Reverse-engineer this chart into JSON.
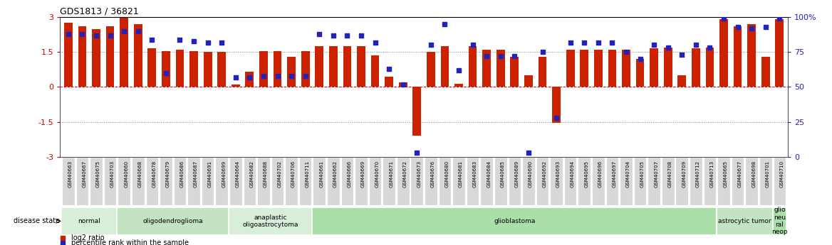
{
  "title": "GDS1813 / 36821",
  "samples": [
    "GSM40663",
    "GSM40667",
    "GSM40675",
    "GSM40703",
    "GSM40660",
    "GSM40668",
    "GSM40678",
    "GSM40679",
    "GSM40686",
    "GSM40687",
    "GSM40691",
    "GSM40699",
    "GSM40664",
    "GSM40682",
    "GSM40688",
    "GSM40702",
    "GSM40706",
    "GSM40711",
    "GSM40661",
    "GSM40662",
    "GSM40666",
    "GSM40669",
    "GSM40670",
    "GSM40671",
    "GSM40672",
    "GSM40673",
    "GSM40676",
    "GSM40680",
    "GSM40681",
    "GSM40683",
    "GSM40684",
    "GSM40685",
    "GSM40689",
    "GSM40690",
    "GSM40692",
    "GSM40693",
    "GSM40694",
    "GSM40695",
    "GSM40696",
    "GSM40697",
    "GSM40704",
    "GSM40705",
    "GSM40707",
    "GSM40708",
    "GSM40709",
    "GSM40712",
    "GSM40713",
    "GSM40665",
    "GSM40677",
    "GSM40698",
    "GSM40701",
    "GSM40710"
  ],
  "log2_ratio": [
    2.75,
    2.6,
    2.5,
    2.6,
    3.0,
    2.7,
    1.65,
    1.55,
    1.6,
    1.55,
    1.5,
    1.5,
    0.1,
    0.65,
    1.55,
    1.55,
    1.3,
    1.55,
    1.75,
    1.75,
    1.75,
    1.75,
    1.35,
    0.45,
    0.2,
    -2.1,
    1.5,
    1.75,
    0.15,
    1.75,
    1.6,
    1.6,
    1.3,
    0.5,
    1.3,
    -1.55,
    1.6,
    1.6,
    1.6,
    1.6,
    1.6,
    1.2,
    1.65,
    1.7,
    0.5,
    1.65,
    1.7,
    2.9,
    2.6,
    2.7,
    1.3,
    2.9
  ],
  "percentile": [
    88,
    88,
    87,
    87,
    90,
    90,
    84,
    60,
    84,
    83,
    82,
    82,
    57,
    57,
    58,
    58,
    58,
    58,
    88,
    87,
    87,
    87,
    82,
    63,
    52,
    3,
    80,
    95,
    62,
    80,
    72,
    72,
    72,
    3,
    75,
    28,
    82,
    82,
    82,
    82,
    75,
    70,
    80,
    78,
    73,
    80,
    78,
    99,
    93,
    92,
    93,
    99
  ],
  "disease_groups": [
    {
      "label": "normal",
      "start": 0,
      "end": 4,
      "color": "#d8eed8"
    },
    {
      "label": "oligodendroglioma",
      "start": 4,
      "end": 12,
      "color": "#c2e4c2"
    },
    {
      "label": "anaplastic\noligoastrocytoma",
      "start": 12,
      "end": 18,
      "color": "#d8eed8"
    },
    {
      "label": "glioblastoma",
      "start": 18,
      "end": 47,
      "color": "#aadfaa"
    },
    {
      "label": "astrocytic tumor",
      "start": 47,
      "end": 51,
      "color": "#c2e4c2"
    },
    {
      "label": "glio\nneu\nral\nneop",
      "start": 51,
      "end": 52,
      "color": "#aadfaa"
    }
  ],
  "bar_color": "#cc2200",
  "dot_color": "#2222bb",
  "ylim_left": [
    -3,
    3
  ],
  "ylim_right": [
    0,
    100
  ],
  "yticks_left": [
    -3,
    -1.5,
    0,
    1.5,
    3
  ],
  "yticks_right": [
    0,
    25,
    50,
    75,
    100
  ]
}
